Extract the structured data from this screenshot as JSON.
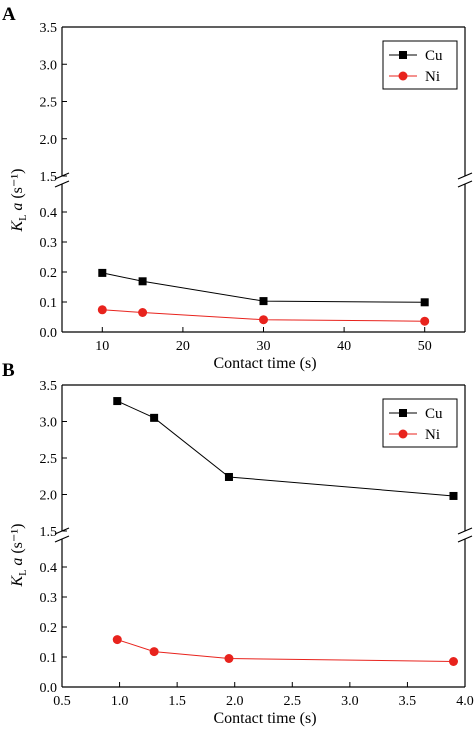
{
  "chart_data": [
    {
      "panel": "A",
      "type": "line",
      "xlabel": "Contact  time (s)",
      "ylabel_main": "K",
      "ylabel_sub": "L",
      "ylabel_rest": "a (s⁻¹)",
      "xlim": [
        5,
        55
      ],
      "xticks": [
        10,
        20,
        30,
        40,
        50
      ],
      "ylim_lower": [
        0.0,
        0.5
      ],
      "yticks_lower": [
        0.0,
        0.1,
        0.2,
        0.3,
        0.4
      ],
      "ylim_upper": [
        1.5,
        3.5
      ],
      "yticks_upper": [
        1.5,
        2.0,
        2.5,
        3.0,
        3.5
      ],
      "axis_break": true,
      "legend_position": "top-right",
      "series": [
        {
          "name": "Cu",
          "color": "#000000",
          "marker": "square",
          "x": [
            10,
            15,
            30,
            50
          ],
          "y": [
            0.197,
            0.169,
            0.103,
            0.099
          ]
        },
        {
          "name": "Ni",
          "color": "#e8231d",
          "marker": "circle",
          "x": [
            10,
            15,
            30,
            50
          ],
          "y": [
            0.074,
            0.065,
            0.041,
            0.036
          ]
        }
      ]
    },
    {
      "panel": "B",
      "type": "line",
      "xlabel": "Contact  time (s)",
      "ylabel_main": "K",
      "ylabel_sub": "L",
      "ylabel_rest": "a (s⁻¹)",
      "xlim": [
        0.5,
        4.0
      ],
      "xticks": [
        0.5,
        1.0,
        1.5,
        2.0,
        2.5,
        3.0,
        3.5,
        4.0
      ],
      "ylim_lower": [
        0.0,
        0.5
      ],
      "yticks_lower": [
        0.0,
        0.1,
        0.2,
        0.3,
        0.4
      ],
      "ylim_upper": [
        1.5,
        3.5
      ],
      "yticks_upper": [
        1.5,
        2.0,
        2.5,
        3.0,
        3.5
      ],
      "axis_break": true,
      "legend_position": "top-right",
      "series": [
        {
          "name": "Cu",
          "color": "#000000",
          "marker": "square",
          "x": [
            0.98,
            1.3,
            1.95,
            3.9
          ],
          "y": [
            3.28,
            3.05,
            2.24,
            1.98
          ]
        },
        {
          "name": "Ni",
          "color": "#e8231d",
          "marker": "circle",
          "x": [
            0.98,
            1.3,
            1.95,
            3.9
          ],
          "y": [
            0.158,
            0.118,
            0.095,
            0.085
          ]
        }
      ]
    }
  ]
}
